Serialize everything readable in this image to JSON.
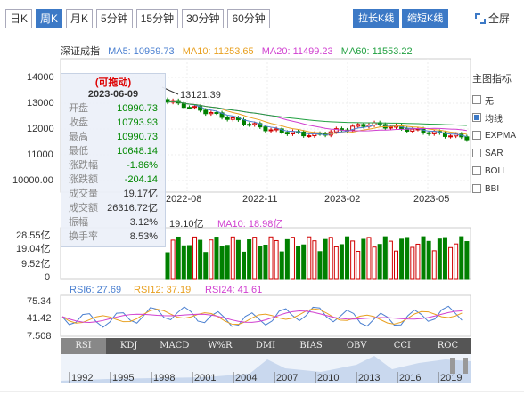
{
  "toolbar": {
    "tabs": [
      "日K",
      "周K",
      "月K",
      "5分钟",
      "15分钟",
      "30分钟",
      "60分钟"
    ],
    "active_tab": 1,
    "stretch_label": "拉长K线",
    "shrink_label": "缩短K线",
    "fullscreen_label": "全屏"
  },
  "header": {
    "index_name": "深证成指",
    "ma5": "MA5: 10959.73",
    "ma10": "MA10: 11253.65",
    "ma20": "MA20: 11499.23",
    "ma60": "MA60: 11553.22"
  },
  "colors": {
    "ma5": "#4a7fd0",
    "ma10": "#e8a020",
    "ma20": "#d040d0",
    "ma60": "#20a040",
    "up": "#d00000",
    "down": "#008000",
    "accent": "#3c79c6"
  },
  "price_axis": [
    "14000",
    "13000",
    "12000",
    "11000",
    "10000.00"
  ],
  "time_axis": [
    "2022-08",
    "2022-11",
    "2023-02",
    "2023-05"
  ],
  "high_marker": "13121.39",
  "tooltip": {
    "title": "(可拖动)",
    "date": "2023-06-09",
    "rows": [
      {
        "label": "开盘",
        "value": "10990.73",
        "tone": "green"
      },
      {
        "label": "收盘",
        "value": "10793.93",
        "tone": "green"
      },
      {
        "label": "最高",
        "value": "10990.73",
        "tone": "green"
      },
      {
        "label": "最低",
        "value": "10648.14",
        "tone": "green"
      },
      {
        "label": "涨跌幅",
        "value": "-1.86%",
        "tone": "green"
      },
      {
        "label": "涨跌额",
        "value": "-204.14",
        "tone": "green"
      },
      {
        "label": "成交量",
        "value": "19.17亿",
        "tone": "plain"
      },
      {
        "label": "成交额",
        "value": "26316.72亿",
        "tone": "plain"
      },
      {
        "label": "振幅",
        "value": "3.12%",
        "tone": "plain"
      },
      {
        "label": "换手率",
        "value": "8.53%",
        "tone": "plain"
      }
    ]
  },
  "volume": {
    "vol_label": "19.10亿",
    "ma10_label": "MA10: 18.98亿",
    "axis": [
      "28.55亿",
      "19.04亿",
      "9.52亿",
      "0"
    ]
  },
  "rsi": {
    "rsi6": "RSI6: 27.69",
    "rsi12": "RSI12: 37.19",
    "rsi24": "RSI24: 41.61",
    "axis": [
      "75.34",
      "41.42",
      "7.508"
    ]
  },
  "indicator_tabs": [
    "RSI",
    "KDJ",
    "MACD",
    "W%R",
    "DMI",
    "BIAS",
    "OBV",
    "CCI",
    "ROC"
  ],
  "active_indicator": 0,
  "right_panel": {
    "title": "主图指标",
    "items": [
      {
        "label": "无",
        "checked": false
      },
      {
        "label": "均线",
        "checked": true
      },
      {
        "label": "EXPMA",
        "checked": false
      },
      {
        "label": "SAR",
        "checked": false
      },
      {
        "label": "BOLL",
        "checked": false
      },
      {
        "label": "BBI",
        "checked": false
      }
    ]
  },
  "overview_years": [
    "1992",
    "1995",
    "1998",
    "2001",
    "2004",
    "2007",
    "2010",
    "2013",
    "2016",
    "2019"
  ]
}
